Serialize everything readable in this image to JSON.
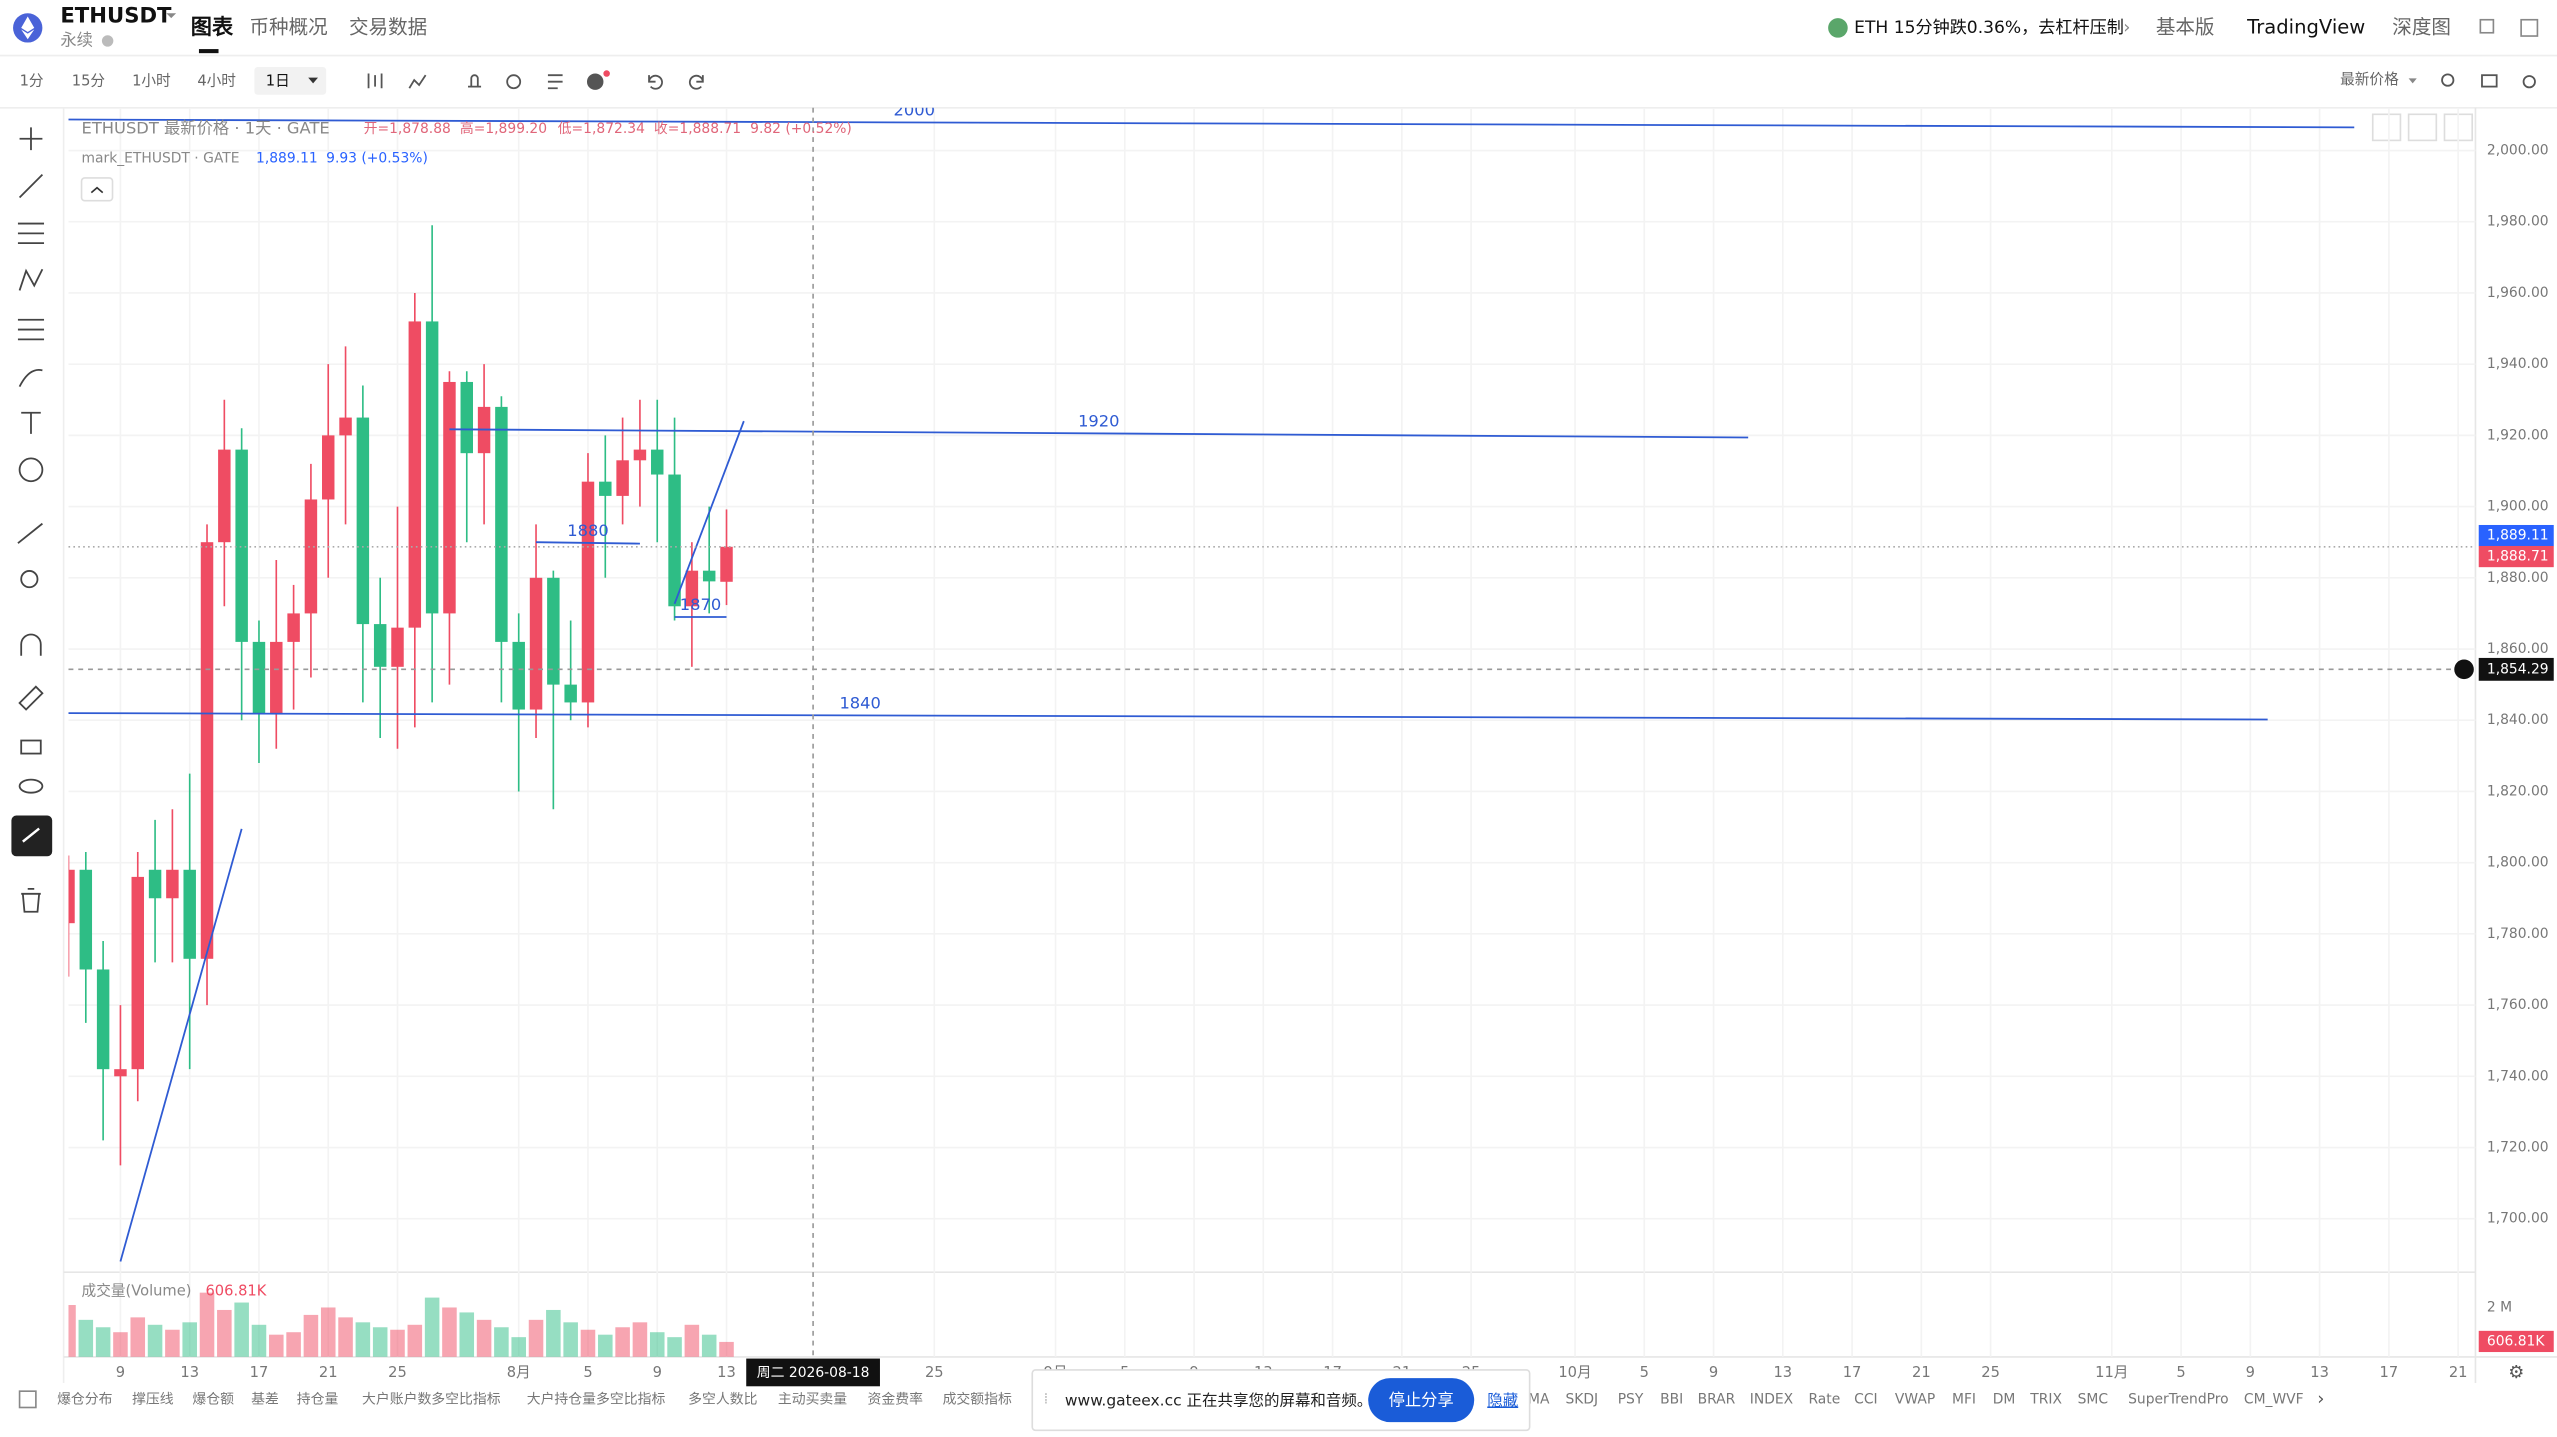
{
  "header": {
    "symbol": "ETHUSDT",
    "subtitle": "永续",
    "tabs": [
      "图表",
      "币种概况",
      "交易数据"
    ],
    "news": "ETH 15分钟跌0.36%，去杠杆压制",
    "views": [
      "基本版",
      "TradingView",
      "深度图"
    ]
  },
  "toolbar": {
    "intervals": [
      "1分",
      "15分",
      "1小时",
      "4小时",
      "1日"
    ],
    "price_source": "最新价格"
  },
  "legend": {
    "title": "ETHUSDT 最新价格 · 1天 · GATE",
    "items": [
      "开=1,878.88",
      "高=1,899.20",
      "低=1,872.34",
      "收=1,888.71"
    ],
    "change": "9.82 (+0.52%)",
    "mark_title": "mark_ETHUSDT · GATE",
    "mark_price": "1,889.11",
    "mark_change": "9.93 (+0.53%)"
  },
  "chart_data": {
    "type": "candlestick",
    "up_color": "#ef4c63",
    "down_color": "#2ebd85",
    "grid": true,
    "xlim": [
      "2026-07-06",
      "2026-11-22"
    ],
    "ylim": [
      1685,
      2012
    ],
    "yticks": [
      {
        "value": 1700,
        "label": "1,700.00"
      },
      {
        "value": 1720,
        "label": "1,720.00"
      },
      {
        "value": 1740,
        "label": "1,740.00"
      },
      {
        "value": 1760,
        "label": "1,760.00"
      },
      {
        "value": 1780,
        "label": "1,780.00"
      },
      {
        "value": 1800,
        "label": "1,800.00"
      },
      {
        "value": 1820,
        "label": "1,820.00"
      },
      {
        "value": 1840,
        "label": "1,840.00"
      },
      {
        "value": 1860,
        "label": "1,860.00"
      },
      {
        "value": 1880,
        "label": "1,880.00"
      },
      {
        "value": 1900,
        "label": "1,900.00"
      },
      {
        "value": 1920,
        "label": "1,920.00"
      },
      {
        "value": 1940,
        "label": "1,940.00"
      },
      {
        "value": 1960,
        "label": "1,960.00"
      },
      {
        "value": 1980,
        "label": "1,980.00"
      },
      {
        "value": 2000,
        "label": "2,000.00"
      }
    ],
    "xticks": [
      {
        "value": "2026-07-09",
        "label": "9"
      },
      {
        "value": "2026-07-13",
        "label": "13"
      },
      {
        "value": "2026-07-17",
        "label": "17"
      },
      {
        "value": "2026-07-21",
        "label": "21"
      },
      {
        "value": "2026-07-25",
        "label": "25"
      },
      {
        "value": "2026-08-01",
        "label": "8月"
      },
      {
        "value": "2026-08-05",
        "label": "5"
      },
      {
        "value": "2026-08-09",
        "label": "9"
      },
      {
        "value": "2026-08-13",
        "label": "13"
      },
      {
        "value": "2026-08-25",
        "label": "25"
      },
      {
        "value": "2026-09-01",
        "label": "9月"
      },
      {
        "value": "2026-09-05",
        "label": "5"
      },
      {
        "value": "2026-09-09",
        "label": "9"
      },
      {
        "value": "2026-09-13",
        "label": "13"
      },
      {
        "value": "2026-09-17",
        "label": "17"
      },
      {
        "value": "2026-09-21",
        "label": "21"
      },
      {
        "value": "2026-09-25",
        "label": "25"
      },
      {
        "value": "2026-10-01",
        "label": "10月"
      },
      {
        "value": "2026-10-05",
        "label": "5"
      },
      {
        "value": "2026-10-09",
        "label": "9"
      },
      {
        "value": "2026-10-13",
        "label": "13"
      },
      {
        "value": "2026-10-17",
        "label": "17"
      },
      {
        "value": "2026-10-21",
        "label": "21"
      },
      {
        "value": "2026-10-25",
        "label": "25"
      },
      {
        "value": "2026-11-01",
        "label": "11月"
      },
      {
        "value": "2026-11-05",
        "label": "5"
      },
      {
        "value": "2026-11-09",
        "label": "9"
      },
      {
        "value": "2026-11-13",
        "label": "13"
      },
      {
        "value": "2026-11-17",
        "label": "17"
      },
      {
        "value": "2026-11-21",
        "label": "21"
      }
    ],
    "x": [
      "2026-07-06",
      "2026-07-07",
      "2026-07-08",
      "2026-07-09",
      "2026-07-10",
      "2026-07-11",
      "2026-07-12",
      "2026-07-13",
      "2026-07-14",
      "2026-07-15",
      "2026-07-16",
      "2026-07-17",
      "2026-07-18",
      "2026-07-19",
      "2026-07-20",
      "2026-07-21",
      "2026-07-22",
      "2026-07-23",
      "2026-07-24",
      "2026-07-25",
      "2026-07-26",
      "2026-07-27",
      "2026-07-28",
      "2026-07-29",
      "2026-07-30",
      "2026-07-31",
      "2026-08-01",
      "2026-08-02",
      "2026-08-03",
      "2026-08-04",
      "2026-08-05",
      "2026-08-06",
      "2026-08-07",
      "2026-08-08",
      "2026-08-09",
      "2026-08-10",
      "2026-08-11",
      "2026-08-12",
      "2026-08-13"
    ],
    "open": [
      1783,
      1798,
      1770,
      1740,
      1742,
      1798,
      1790,
      1798,
      1773,
      1890,
      1916,
      1862,
      1842,
      1862,
      1870,
      1902,
      1920,
      1925,
      1867,
      1855,
      1866,
      1952,
      1870,
      1935,
      1915,
      1928,
      1862,
      1843,
      1880,
      1850,
      1845,
      1907,
      1903,
      1913,
      1916,
      1909,
      1872,
      1882,
      1878.88
    ],
    "high": [
      1802,
      1803,
      1778,
      1760,
      1803,
      1812,
      1815,
      1825,
      1895,
      1930,
      1922,
      1868,
      1885,
      1878,
      1912,
      1940,
      1945,
      1934,
      1880,
      1900,
      1960,
      1979,
      1938,
      1938,
      1940,
      1931,
      1870,
      1895,
      1882,
      1868,
      1915,
      1920,
      1925,
      1930,
      1930,
      1925,
      1890,
      1900,
      1899.2
    ],
    "low": [
      1768,
      1755,
      1722,
      1715,
      1733,
      1772,
      1772,
      1742,
      1760,
      1872,
      1840,
      1828,
      1832,
      1843,
      1852,
      1880,
      1895,
      1845,
      1835,
      1832,
      1838,
      1845,
      1850,
      1890,
      1895,
      1845,
      1820,
      1835,
      1815,
      1840,
      1838,
      1880,
      1895,
      1900,
      1890,
      1868,
      1855,
      1870,
      1872.34
    ],
    "close": [
      1798,
      1770,
      1742,
      1742,
      1796,
      1790,
      1798,
      1773,
      1890,
      1916,
      1862,
      1842,
      1862,
      1870,
      1902,
      1920,
      1925,
      1867,
      1855,
      1866,
      1952,
      1870,
      1935,
      1915,
      1928,
      1862,
      1843,
      1880,
      1850,
      1845,
      1907,
      1903,
      1913,
      1916,
      1909,
      1872,
      1882,
      1879,
      1888.71
    ],
    "volume": {
      "title": "成交量(Volume)",
      "ylim": [
        0,
        3100000
      ],
      "yticks": [
        {
          "value": 2000000,
          "label": "2 M"
        }
      ],
      "last_label": "606.81K",
      "values": [
        2100000,
        1500000,
        1200000,
        1000000,
        1600000,
        1300000,
        1100000,
        1400000,
        2600000,
        1900000,
        2200000,
        1300000,
        900000,
        1000000,
        1700000,
        2000000,
        1600000,
        1400000,
        1200000,
        1100000,
        1300000,
        2400000,
        2000000,
        1800000,
        1500000,
        1200000,
        800000,
        1500000,
        1900000,
        1400000,
        1100000,
        900000,
        1200000,
        1400000,
        1000000,
        800000,
        1300000,
        900000,
        606810
      ]
    },
    "annotations": [
      {
        "text": "2000",
        "x0": "2026-07-06",
        "y0": 2008.7,
        "x1": "2026-11-15",
        "y1": 2006.5
      },
      {
        "text": "1920",
        "x0": "2026-07-28",
        "y0": 1921.7,
        "x1": "2026-10-11",
        "y1": 1919.4
      },
      {
        "text": "1840",
        "x0": "2026-07-06",
        "y0": 1842,
        "x1": "2026-11-10",
        "y1": 1840.2
      },
      {
        "text": "1880",
        "x0": "2026-08-02",
        "y0": 1890,
        "x1": "2026-08-08",
        "y1": 1889.6
      },
      {
        "text": "1870",
        "x0": "2026-08-10",
        "y0": 1869,
        "x1": "2026-08-13",
        "y1": 1869
      },
      {
        "x0": "2026-07-09",
        "y0": 1688,
        "x1": "2026-07-16",
        "y1": 1809.5
      },
      {
        "x0": "2026-08-10",
        "y0": 1872.7,
        "x1": "2026-08-14",
        "y1": 1924
      }
    ],
    "price_tags": [
      {
        "value": 1889.11,
        "label": "1,889.11",
        "color": "#2962ff"
      },
      {
        "value": 1888.71,
        "label": "1,888.71",
        "color": "#ef4c63"
      }
    ],
    "crosshair": {
      "x": "2026-08-18",
      "x_label": "周二 2026-08-18",
      "y": 1854.29,
      "y_label": "1,854.29"
    }
  },
  "indicators": [
    "爆仓分布",
    "撑压线",
    "爆仓额",
    "基差",
    "持仓量",
    "大户账户数多空比指标",
    "大户持仓量多空比指标",
    "多空人数比",
    "主动买卖量",
    "资金费率",
    "成交额指标",
    "MA",
    "SKDJ",
    "PSY",
    "BBI",
    "BRAR",
    "INDEX",
    "Rate",
    "CCI",
    "VWAP",
    "MFI",
    "DM",
    "TRIX",
    "SMC",
    "SuperTrendPro",
    "CM_WVF"
  ],
  "share_banner": {
    "message": "www.gateex.cc 正在共享您的屏幕和音频。",
    "stop": "停止分享",
    "hide": "隐藏"
  }
}
